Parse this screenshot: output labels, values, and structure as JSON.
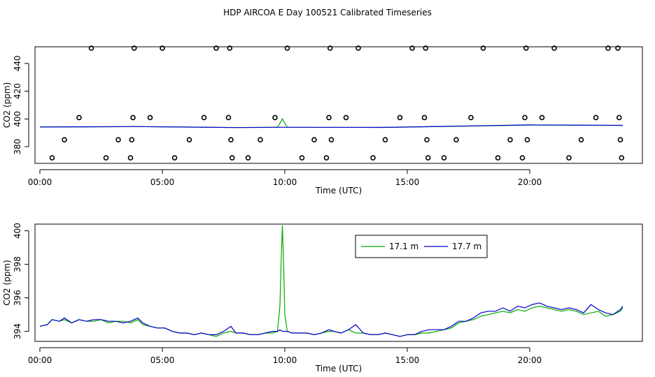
{
  "figure": {
    "title": "HDP AIRCOA E  Day 100521  Calibrated Timeseries"
  },
  "chart_data": [
    {
      "type": "scatter",
      "title": "HDP AIRCOA E  Day 100521  Calibrated Timeseries",
      "xlabel": "Time (UTC)",
      "ylabel": "CO2 (ppm)",
      "x_unit": "hours",
      "xlim": [
        -0.2,
        24.6
      ],
      "ylim": [
        368,
        452
      ],
      "x_ticks": [
        0,
        5,
        10,
        15,
        20
      ],
      "x_tick_labels": [
        "00:00",
        "05:00",
        "10:00",
        "15:00",
        "20:00"
      ],
      "y_ticks": [
        380,
        400,
        420,
        440
      ],
      "y_tick_labels": [
        "380",
        "400",
        "420",
        "440"
      ],
      "grid": false,
      "series": [
        {
          "kind": "points",
          "color": "#000000",
          "points": [
            [
              0.5,
              372
            ],
            [
              1.0,
              385
            ],
            [
              1.6,
              401
            ],
            [
              2.1,
              451
            ],
            [
              2.7,
              372
            ],
            [
              3.2,
              385
            ],
            [
              3.7,
              372
            ],
            [
              3.75,
              385
            ],
            [
              3.8,
              401
            ],
            [
              3.85,
              451
            ],
            [
              4.5,
              401
            ],
            [
              5.0,
              451
            ],
            [
              5.5,
              372
            ],
            [
              6.1,
              385
            ],
            [
              6.7,
              401
            ],
            [
              7.2,
              451
            ],
            [
              7.7,
              401
            ],
            [
              7.75,
              451
            ],
            [
              7.8,
              385
            ],
            [
              7.85,
              372
            ],
            [
              8.5,
              372
            ],
            [
              9.0,
              385
            ],
            [
              9.6,
              401
            ],
            [
              10.1,
              451
            ],
            [
              10.7,
              372
            ],
            [
              11.2,
              385
            ],
            [
              11.7,
              372
            ],
            [
              11.8,
              401
            ],
            [
              11.85,
              451
            ],
            [
              11.9,
              385
            ],
            [
              12.5,
              401
            ],
            [
              13.0,
              451
            ],
            [
              13.6,
              372
            ],
            [
              14.1,
              385
            ],
            [
              14.7,
              401
            ],
            [
              15.2,
              451
            ],
            [
              15.7,
              401
            ],
            [
              15.75,
              451
            ],
            [
              15.8,
              385
            ],
            [
              15.85,
              372
            ],
            [
              16.5,
              372
            ],
            [
              17.0,
              385
            ],
            [
              17.6,
              401
            ],
            [
              18.1,
              451
            ],
            [
              18.7,
              372
            ],
            [
              19.2,
              385
            ],
            [
              19.7,
              372
            ],
            [
              19.8,
              401
            ],
            [
              19.85,
              451
            ],
            [
              19.9,
              385
            ],
            [
              20.5,
              401
            ],
            [
              21.0,
              451
            ],
            [
              21.6,
              372
            ],
            [
              22.1,
              385
            ],
            [
              22.7,
              401
            ],
            [
              23.2,
              451
            ],
            [
              23.6,
              451
            ],
            [
              23.65,
              401
            ],
            [
              23.7,
              385
            ],
            [
              23.75,
              372
            ]
          ]
        },
        {
          "kind": "line",
          "color": "#00aa00",
          "points": [
            [
              0,
              394.2
            ],
            [
              4,
              394.5
            ],
            [
              8,
              393.8
            ],
            [
              9.7,
              394.0
            ],
            [
              9.85,
              398.5
            ],
            [
              9.9,
              400.2
            ],
            [
              9.95,
              398.5
            ],
            [
              10.1,
              394.0
            ],
            [
              14,
              393.9
            ],
            [
              17,
              394.7
            ],
            [
              20,
              395.6
            ],
            [
              23.8,
              395.3
            ]
          ]
        },
        {
          "kind": "line",
          "color": "#0000cc",
          "points": [
            [
              0,
              394.2
            ],
            [
              4,
              394.5
            ],
            [
              8,
              393.8
            ],
            [
              10,
              394.0
            ],
            [
              14,
              393.9
            ],
            [
              17,
              394.8
            ],
            [
              20,
              395.7
            ],
            [
              23.8,
              395.4
            ]
          ]
        }
      ]
    },
    {
      "type": "line",
      "title": "",
      "xlabel": "Time (UTC)",
      "ylabel": "CO2 (ppm)",
      "x_unit": "hours",
      "xlim": [
        -0.2,
        24.6
      ],
      "ylim": [
        393.4,
        400.4
      ],
      "x_ticks": [
        0,
        5,
        10,
        15,
        20
      ],
      "x_tick_labels": [
        "00:00",
        "05:00",
        "10:00",
        "15:00",
        "20:00"
      ],
      "y_ticks": [
        394,
        396,
        398,
        400
      ],
      "y_tick_labels": [
        "394",
        "396",
        "398",
        "400"
      ],
      "grid": false,
      "legend_position": "top-right",
      "series": [
        {
          "name": "17.1 m",
          "color": "#00aa00",
          "points": [
            [
              0.0,
              394.3
            ],
            [
              0.3,
              394.4
            ],
            [
              0.5,
              394.7
            ],
            [
              0.8,
              394.6
            ],
            [
              1.0,
              394.7
            ],
            [
              1.3,
              394.5
            ],
            [
              1.6,
              394.7
            ],
            [
              1.9,
              394.6
            ],
            [
              2.2,
              394.6
            ],
            [
              2.5,
              394.7
            ],
            [
              2.8,
              394.5
            ],
            [
              3.1,
              394.6
            ],
            [
              3.4,
              394.6
            ],
            [
              3.7,
              394.5
            ],
            [
              4.0,
              394.7
            ],
            [
              4.2,
              394.4
            ],
            [
              4.5,
              394.3
            ],
            [
              4.8,
              394.2
            ],
            [
              5.1,
              394.2
            ],
            [
              5.4,
              394.0
            ],
            [
              5.7,
              393.9
            ],
            [
              6.0,
              393.9
            ],
            [
              6.3,
              393.8
            ],
            [
              6.6,
              393.9
            ],
            [
              6.9,
              393.8
            ],
            [
              7.2,
              393.7
            ],
            [
              7.5,
              393.9
            ],
            [
              7.8,
              394.0
            ],
            [
              8.0,
              393.9
            ],
            [
              8.3,
              393.9
            ],
            [
              8.6,
              393.8
            ],
            [
              8.9,
              393.8
            ],
            [
              9.2,
              393.9
            ],
            [
              9.5,
              393.9
            ],
            [
              9.7,
              394.0
            ],
            [
              9.8,
              395.5
            ],
            [
              9.85,
              398.2
            ],
            [
              9.9,
              400.3
            ],
            [
              9.95,
              398.2
            ],
            [
              10.0,
              395.0
            ],
            [
              10.1,
              394.0
            ],
            [
              10.3,
              393.9
            ],
            [
              10.6,
              393.9
            ],
            [
              10.9,
              393.9
            ],
            [
              11.2,
              393.8
            ],
            [
              11.5,
              393.9
            ],
            [
              11.8,
              394.0
            ],
            [
              12.0,
              394.0
            ],
            [
              12.3,
              393.9
            ],
            [
              12.6,
              394.1
            ],
            [
              12.9,
              393.9
            ],
            [
              13.2,
              393.9
            ],
            [
              13.5,
              393.8
            ],
            [
              13.8,
              393.8
            ],
            [
              14.1,
              393.9
            ],
            [
              14.4,
              393.8
            ],
            [
              14.7,
              393.7
            ],
            [
              15.0,
              393.8
            ],
            [
              15.3,
              393.8
            ],
            [
              15.6,
              393.9
            ],
            [
              15.9,
              393.9
            ],
            [
              16.2,
              394.0
            ],
            [
              16.5,
              394.1
            ],
            [
              16.8,
              394.2
            ],
            [
              17.1,
              394.5
            ],
            [
              17.4,
              394.6
            ],
            [
              17.7,
              394.7
            ],
            [
              18.0,
              394.9
            ],
            [
              18.3,
              395.0
            ],
            [
              18.6,
              395.1
            ],
            [
              18.9,
              395.2
            ],
            [
              19.2,
              395.1
            ],
            [
              19.5,
              395.3
            ],
            [
              19.8,
              395.2
            ],
            [
              20.1,
              395.4
            ],
            [
              20.4,
              395.5
            ],
            [
              20.7,
              395.4
            ],
            [
              21.0,
              395.3
            ],
            [
              21.3,
              395.2
            ],
            [
              21.6,
              395.3
            ],
            [
              21.9,
              395.2
            ],
            [
              22.2,
              395.0
            ],
            [
              22.5,
              395.1
            ],
            [
              22.8,
              395.2
            ],
            [
              23.1,
              394.9
            ],
            [
              23.4,
              395.0
            ],
            [
              23.7,
              395.2
            ],
            [
              23.8,
              395.4
            ]
          ]
        },
        {
          "name": "17.7 m",
          "color": "#0000cc",
          "points": [
            [
              0.0,
              394.3
            ],
            [
              0.3,
              394.4
            ],
            [
              0.5,
              394.7
            ],
            [
              0.8,
              394.6
            ],
            [
              1.0,
              394.8
            ],
            [
              1.3,
              394.5
            ],
            [
              1.6,
              394.7
            ],
            [
              1.9,
              394.6
            ],
            [
              2.2,
              394.7
            ],
            [
              2.5,
              394.7
            ],
            [
              2.8,
              394.6
            ],
            [
              3.1,
              394.6
            ],
            [
              3.4,
              394.5
            ],
            [
              3.7,
              394.6
            ],
            [
              4.0,
              394.8
            ],
            [
              4.2,
              394.5
            ],
            [
              4.5,
              394.3
            ],
            [
              4.8,
              394.2
            ],
            [
              5.1,
              394.2
            ],
            [
              5.4,
              394.0
            ],
            [
              5.7,
              393.9
            ],
            [
              6.0,
              393.9
            ],
            [
              6.3,
              393.8
            ],
            [
              6.6,
              393.9
            ],
            [
              6.9,
              393.8
            ],
            [
              7.2,
              393.8
            ],
            [
              7.5,
              394.0
            ],
            [
              7.8,
              394.3
            ],
            [
              8.0,
              393.9
            ],
            [
              8.3,
              393.9
            ],
            [
              8.6,
              393.8
            ],
            [
              8.9,
              393.8
            ],
            [
              9.2,
              393.9
            ],
            [
              9.5,
              394.0
            ],
            [
              9.7,
              394.0
            ],
            [
              9.8,
              394.1
            ],
            [
              9.9,
              394.0
            ],
            [
              10.0,
              394.0
            ],
            [
              10.1,
              394.0
            ],
            [
              10.3,
              393.9
            ],
            [
              10.6,
              393.9
            ],
            [
              10.9,
              393.9
            ],
            [
              11.2,
              393.8
            ],
            [
              11.5,
              393.9
            ],
            [
              11.8,
              394.1
            ],
            [
              12.0,
              394.0
            ],
            [
              12.3,
              393.9
            ],
            [
              12.6,
              394.1
            ],
            [
              12.9,
              394.4
            ],
            [
              13.2,
              393.9
            ],
            [
              13.5,
              393.8
            ],
            [
              13.8,
              393.8
            ],
            [
              14.1,
              393.9
            ],
            [
              14.4,
              393.8
            ],
            [
              14.7,
              393.7
            ],
            [
              15.0,
              393.8
            ],
            [
              15.3,
              393.8
            ],
            [
              15.6,
              394.0
            ],
            [
              15.9,
              394.1
            ],
            [
              16.2,
              394.1
            ],
            [
              16.5,
              394.1
            ],
            [
              16.8,
              394.3
            ],
            [
              17.1,
              394.6
            ],
            [
              17.4,
              394.6
            ],
            [
              17.7,
              394.8
            ],
            [
              18.0,
              395.1
            ],
            [
              18.3,
              395.2
            ],
            [
              18.6,
              395.2
            ],
            [
              18.9,
              395.4
            ],
            [
              19.2,
              395.2
            ],
            [
              19.5,
              395.5
            ],
            [
              19.8,
              395.4
            ],
            [
              20.1,
              395.6
            ],
            [
              20.4,
              395.7
            ],
            [
              20.7,
              395.5
            ],
            [
              21.0,
              395.4
            ],
            [
              21.3,
              395.3
            ],
            [
              21.6,
              395.4
            ],
            [
              21.9,
              395.3
            ],
            [
              22.2,
              395.1
            ],
            [
              22.5,
              395.6
            ],
            [
              22.8,
              395.3
            ],
            [
              23.1,
              395.1
            ],
            [
              23.4,
              395.0
            ],
            [
              23.7,
              395.3
            ],
            [
              23.8,
              395.5
            ]
          ]
        }
      ]
    }
  ]
}
